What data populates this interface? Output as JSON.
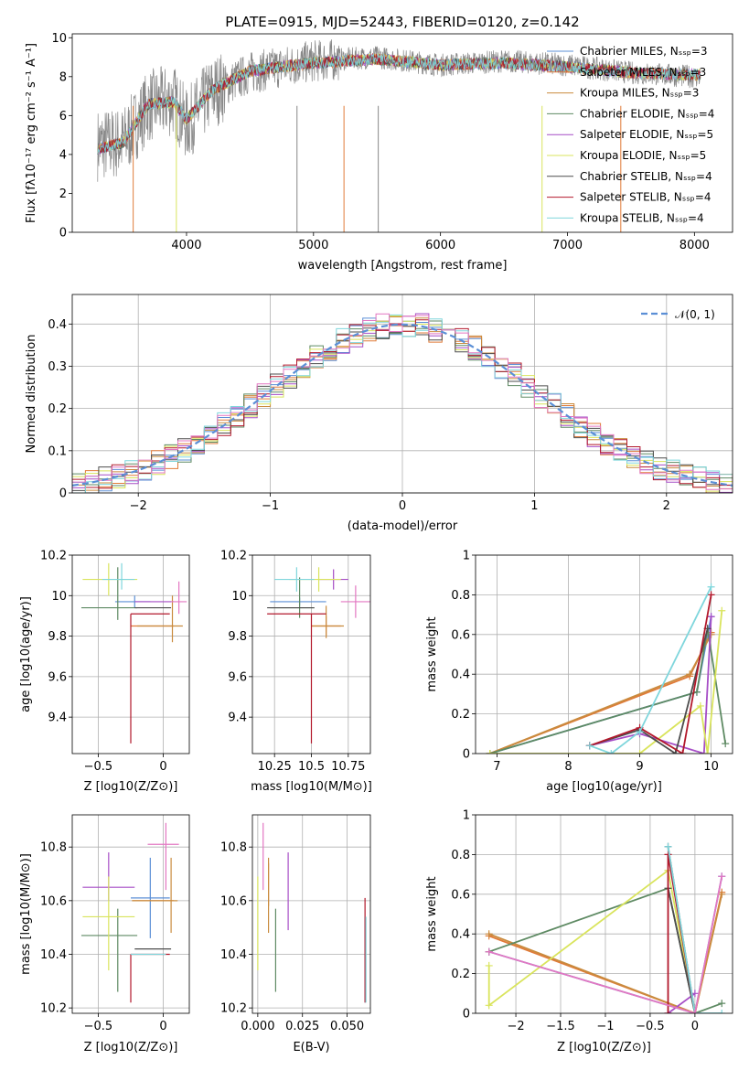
{
  "figure": {
    "title": "PLATE=0915, MJD=52443, FIBERID=0120, z=0.142"
  },
  "colors": {
    "Chabrier MILES": "#5b8fd6",
    "Salpeter MILES": "#e07b39",
    "Kroupa MILES": "#c98b3e",
    "Chabrier ELODIE": "#5e8a63",
    "Salpeter ELODIE": "#a64dc6",
    "Kroupa ELODIE": "#d9e45c",
    "Chabrier STELIB": "#4d4d4d",
    "Salpeter STELIB": "#b2182b",
    "Kroupa STELIB": "#7fd6dc",
    "pink": "#e377c2",
    "normal": "#5b8fd6"
  },
  "chart_data": [
    {
      "id": "spectrum",
      "type": "line",
      "title": "PLATE=0915, MJD=52443, FIBERID=0120, z=0.142",
      "xlabel": "wavelength [Angstrom, rest frame]",
      "ylabel": "Flux [fλ10⁻¹⁷ erg cm⁻² s⁻¹ A⁻¹]",
      "xlim": [
        3100,
        8300
      ],
      "ylim": [
        0,
        10.2
      ],
      "xticks": [
        4000,
        5000,
        6000,
        7000,
        8000
      ],
      "yticks": [
        0,
        2,
        4,
        6,
        8,
        10
      ],
      "data_x": [
        3300,
        3500,
        3700,
        3900,
        4000,
        4200,
        4500,
        5000,
        5500,
        6000,
        6500,
        7000,
        7500,
        8000,
        8050
      ],
      "data_y": [
        4.5,
        4.6,
        6.5,
        6.8,
        5.5,
        7.2,
        8.2,
        8.8,
        9.0,
        8.6,
        8.8,
        8.6,
        8.2,
        8.0,
        8.0
      ],
      "model_y": [
        4.3,
        4.6,
        6.6,
        6.7,
        5.8,
        7.3,
        8.3,
        8.7,
        8.9,
        8.6,
        8.7,
        8.5,
        8.2,
        8.1,
        8.1
      ],
      "legend": [
        "Chabrier MILES, N_SSP=3",
        "Salpeter MILES, N_SSP=3",
        "Kroupa MILES, N_SSP=3",
        "Chabrier ELODIE, N_SSP=4",
        "Salpeter ELODIE, N_SSP=5",
        "Kroupa ELODIE, N_SSP=5",
        "Chabrier STELIB, N_SSP=4",
        "Salpeter STELIB, N_SSP=4",
        "Kroupa STELIB, N_SSP=4"
      ],
      "legend_position": "upper-right",
      "grid": false
    },
    {
      "id": "residuals",
      "type": "line",
      "xlabel": "(data-model)/error",
      "ylabel": "Normed distribution",
      "xlim": [
        -2.5,
        2.5
      ],
      "ylim": [
        0,
        0.47
      ],
      "xticks": [
        -2,
        -1,
        0,
        1,
        2
      ],
      "yticks": [
        0.0,
        0.1,
        0.2,
        0.3,
        0.4
      ],
      "legend": [
        "𝒩(0, 1)"
      ],
      "legend_position": "upper-right",
      "grid": true
    },
    {
      "id": "age_vs_Z",
      "type": "scatter",
      "xlabel": "Z [log10(Z/Z⊙)]",
      "ylabel": "age  [log10(age/yr)]",
      "xlim": [
        -0.7,
        0.2
      ],
      "ylim": [
        9.22,
        10.2
      ],
      "xticks": [
        -0.5,
        0.0
      ],
      "yticks": [
        9.4,
        9.6,
        9.8,
        10.0,
        10.2
      ],
      "grid": true,
      "points": [
        {
          "model": "Chabrier MILES",
          "x": -0.22,
          "y": 9.97,
          "xerr": [
            0.15,
            0.12
          ],
          "yerr": [
            0.03,
            0.03
          ]
        },
        {
          "model": "Salpeter MILES",
          "x": -0.25,
          "y": 9.85,
          "xerr": [
            0.0,
            0.33
          ],
          "yerr": [
            0.0,
            0.0
          ]
        },
        {
          "model": "Kroupa MILES",
          "x": 0.07,
          "y": 9.85,
          "xerr": [
            0.27,
            0.08
          ],
          "yerr": [
            0.08,
            0.15
          ]
        },
        {
          "model": "Chabrier ELODIE",
          "x": -0.35,
          "y": 9.94,
          "xerr": [
            0.28,
            0.15
          ],
          "yerr": [
            0.06,
            0.2
          ]
        },
        {
          "model": "Salpeter ELODIE",
          "x": -0.22,
          "y": 9.97,
          "xerr": [
            0.0,
            0.3
          ],
          "yerr": [
            0.0,
            0.0
          ]
        },
        {
          "model": "Kroupa ELODIE",
          "x": -0.42,
          "y": 10.08,
          "xerr": [
            0.2,
            0.22
          ],
          "yerr": [
            0.08,
            0.08
          ]
        },
        {
          "model": "Chabrier STELIB",
          "x": -0.22,
          "y": 9.94,
          "xerr": [
            0.0,
            0.28
          ],
          "yerr": [
            0.0,
            0.0
          ]
        },
        {
          "model": "Salpeter STELIB",
          "x": -0.25,
          "y": 9.91,
          "xerr": [
            0.0,
            0.3
          ],
          "yerr": [
            0.64,
            0.0
          ]
        },
        {
          "model": "Kroupa STELIB",
          "x": -0.32,
          "y": 10.08,
          "xerr": [
            0.15,
            0.1
          ],
          "yerr": [
            0.05,
            0.08
          ]
        },
        {
          "model": "pink",
          "x": 0.12,
          "y": 9.97,
          "xerr": [
            0.06,
            0.06
          ],
          "yerr": [
            0.06,
            0.1
          ]
        }
      ]
    },
    {
      "id": "age_vs_mass",
      "type": "scatter",
      "xlabel": "mass [log10(M/M⊙)]",
      "xlim": [
        10.1,
        10.9
      ],
      "ylim": [
        9.22,
        10.2
      ],
      "xticks": [
        10.25,
        10.5,
        10.75
      ],
      "yticks": [
        9.4,
        9.6,
        9.8,
        10.0,
        10.2
      ],
      "grid": true,
      "points": [
        {
          "model": "Chabrier MILES",
          "x": 10.42,
          "y": 9.97,
          "xerr": [
            0.2,
            0.18
          ],
          "yerr": [
            0.02,
            0.02
          ]
        },
        {
          "model": "Salpeter MILES",
          "x": 10.6,
          "y": 9.85,
          "xerr": [
            0.1,
            0.1
          ],
          "yerr": [
            0.05,
            0.05
          ]
        },
        {
          "model": "Kroupa MILES",
          "x": 10.6,
          "y": 9.85,
          "xerr": [
            0.1,
            0.12
          ],
          "yerr": [
            0.06,
            0.1
          ]
        },
        {
          "model": "Chabrier ELODIE",
          "x": 10.42,
          "y": 9.94,
          "xerr": [
            0.2,
            0.1
          ],
          "yerr": [
            0.05,
            0.15
          ]
        },
        {
          "model": "Salpeter ELODIE",
          "x": 10.65,
          "y": 10.08,
          "xerr": [
            0.1,
            0.1
          ],
          "yerr": [
            0.05,
            0.05
          ]
        },
        {
          "model": "Kroupa ELODIE",
          "x": 10.55,
          "y": 10.08,
          "xerr": [
            0.2,
            0.15
          ],
          "yerr": [
            0.06,
            0.06
          ]
        },
        {
          "model": "Chabrier STELIB",
          "x": 10.42,
          "y": 9.94,
          "xerr": [
            0.22,
            0.1
          ],
          "yerr": [
            0.0,
            0.0
          ]
        },
        {
          "model": "Salpeter STELIB",
          "x": 10.5,
          "y": 9.91,
          "xerr": [
            0.3,
            0.1
          ],
          "yerr": [
            0.64,
            0.0
          ]
        },
        {
          "model": "Kroupa STELIB",
          "x": 10.4,
          "y": 10.08,
          "xerr": [
            0.15,
            0.12
          ],
          "yerr": [
            0.06,
            0.06
          ]
        },
        {
          "model": "pink",
          "x": 10.8,
          "y": 9.97,
          "xerr": [
            0.1,
            0.1
          ],
          "yerr": [
            0.08,
            0.08
          ]
        }
      ]
    },
    {
      "id": "weight_vs_age",
      "type": "line",
      "xlabel": "age  [log10(age/yr)]",
      "ylabel": "mass weight",
      "xlim": [
        6.7,
        10.3
      ],
      "ylim": [
        0,
        1.0
      ],
      "xticks": [
        7,
        8,
        9,
        10
      ],
      "yticks": [
        0.0,
        0.2,
        0.4,
        0.6,
        0.8,
        1.0
      ],
      "grid": true,
      "series": [
        {
          "model": "Chabrier MILES",
          "x": [
            6.9,
            9.8,
            10.0
          ],
          "y": [
            0.0,
            0.31,
            0.69
          ]
        },
        {
          "model": "Salpeter MILES",
          "x": [
            6.9,
            9.7,
            10.0
          ],
          "y": [
            0.0,
            0.39,
            0.61
          ]
        },
        {
          "model": "Kroupa MILES",
          "x": [
            6.9,
            9.7,
            10.0
          ],
          "y": [
            0.0,
            0.4,
            0.6
          ]
        },
        {
          "model": "Chabrier ELODIE",
          "x": [
            6.9,
            9.8,
            9.95,
            10.2
          ],
          "y": [
            0.0,
            0.31,
            0.63,
            0.05
          ]
        },
        {
          "model": "Salpeter ELODIE",
          "x": [
            8.3,
            9.0,
            9.9,
            10.0
          ],
          "y": [
            0.04,
            0.1,
            0.0,
            0.69
          ]
        },
        {
          "model": "Kroupa ELODIE",
          "x": [
            6.9,
            9.0,
            9.85,
            9.95,
            10.15
          ],
          "y": [
            0.0,
            0.0,
            0.24,
            0.0,
            0.72
          ]
        },
        {
          "model": "Chabrier STELIB",
          "x": [
            8.3,
            9.0,
            9.5,
            9.95
          ],
          "y": [
            0.04,
            0.12,
            0.0,
            0.63
          ]
        },
        {
          "model": "Salpeter STELIB",
          "x": [
            8.3,
            9.0,
            9.6,
            10.0
          ],
          "y": [
            0.04,
            0.13,
            0.0,
            0.8
          ]
        },
        {
          "model": "Kroupa STELIB",
          "x": [
            8.3,
            8.6,
            9.0,
            10.0
          ],
          "y": [
            0.04,
            0.0,
            0.11,
            0.84
          ]
        }
      ]
    },
    {
      "id": "mass_vs_Z",
      "type": "scatter",
      "xlabel": "Z [log10(Z/Z⊙)]",
      "ylabel": "mass [log10(M/M⊙)]",
      "xlim": [
        -0.7,
        0.2
      ],
      "ylim": [
        10.18,
        10.92
      ],
      "xticks": [
        -0.5,
        0.0
      ],
      "yticks": [
        10.2,
        10.4,
        10.6,
        10.8
      ],
      "grid": true,
      "points": [
        {
          "model": "Chabrier MILES",
          "x": -0.1,
          "y": 10.61,
          "xerr": [
            0.15,
            0.15
          ],
          "yerr": [
            0.15,
            0.15
          ]
        },
        {
          "model": "Salpeter MILES",
          "x": 0.08,
          "y": 10.6,
          "xerr": [
            0.32,
            0.0
          ],
          "yerr": [
            0.0,
            0.0
          ]
        },
        {
          "model": "Kroupa MILES",
          "x": 0.06,
          "y": 10.6,
          "xerr": [
            0.3,
            0.05
          ],
          "yerr": [
            0.12,
            0.16
          ]
        },
        {
          "model": "Chabrier ELODIE",
          "x": -0.35,
          "y": 10.47,
          "xerr": [
            0.28,
            0.15
          ],
          "yerr": [
            0.21,
            0.1
          ]
        },
        {
          "model": "Salpeter ELODIE",
          "x": -0.42,
          "y": 10.65,
          "xerr": [
            0.2,
            0.2
          ],
          "yerr": [
            0.05,
            0.13
          ]
        },
        {
          "model": "Kroupa ELODIE",
          "x": -0.42,
          "y": 10.54,
          "xerr": [
            0.2,
            0.2
          ],
          "yerr": [
            0.2,
            0.15
          ]
        },
        {
          "model": "Chabrier STELIB",
          "x": -0.22,
          "y": 10.42,
          "xerr": [
            0.0,
            0.28
          ],
          "yerr": [
            0.0,
            0.0
          ]
        },
        {
          "model": "Salpeter STELIB",
          "x": -0.25,
          "y": 10.4,
          "xerr": [
            0.0,
            0.3
          ],
          "yerr": [
            0.18,
            0.0
          ]
        },
        {
          "model": "Kroupa STELIB",
          "x": -0.1,
          "y": 10.4,
          "xerr": [
            0.15,
            0.12
          ],
          "yerr": [
            0.0,
            0.0
          ]
        },
        {
          "model": "pink",
          "x": 0.02,
          "y": 10.81,
          "xerr": [
            0.14,
            0.1
          ],
          "yerr": [
            0.17,
            0.08
          ]
        }
      ]
    },
    {
      "id": "mass_vs_ebv",
      "type": "scatter",
      "xlabel": "E(B-V)",
      "xlim": [
        -0.003,
        0.063
      ],
      "ylim": [
        10.18,
        10.92
      ],
      "xticks": [
        0.0,
        0.025,
        0.05
      ],
      "xticklabels": [
        "0.000",
        "0.025",
        "0.050"
      ],
      "yticks": [
        10.2,
        10.4,
        10.6,
        10.8
      ],
      "grid": true,
      "points": [
        {
          "model": "Chabrier MILES",
          "x": 0.06,
          "y": 10.4,
          "yerr": [
            0.18,
            0.14
          ]
        },
        {
          "model": "Salpeter MILES",
          "x": 0.006,
          "y": 10.7,
          "yerr": [
            0.12,
            0.04
          ]
        },
        {
          "model": "Kroupa MILES",
          "x": 0.006,
          "y": 10.6,
          "yerr": [
            0.12,
            0.16
          ]
        },
        {
          "model": "Chabrier ELODIE",
          "x": 0.01,
          "y": 10.47,
          "yerr": [
            0.21,
            0.1
          ]
        },
        {
          "model": "Salpeter ELODIE",
          "x": 0.017,
          "y": 10.65,
          "yerr": [
            0.16,
            0.13
          ]
        },
        {
          "model": "Kroupa ELODIE",
          "x": 0.0,
          "y": 10.54,
          "yerr": [
            0.2,
            0.15
          ]
        },
        {
          "model": "Salpeter STELIB",
          "x": 0.06,
          "y": 10.4,
          "yerr": [
            0.18,
            0.21
          ]
        },
        {
          "model": "Kroupa STELIB",
          "x": 0.0605,
          "y": 10.4,
          "yerr": [
            0.18,
            0.14
          ]
        },
        {
          "model": "pink",
          "x": 0.003,
          "y": 10.81,
          "yerr": [
            0.17,
            0.08
          ]
        }
      ]
    },
    {
      "id": "weight_vs_Z",
      "type": "line",
      "xlabel": "Z [log10(Z/Z⊙)]",
      "ylabel": "mass weight",
      "xlim": [
        -2.45,
        0.42
      ],
      "ylim": [
        0,
        1.0
      ],
      "xticks": [
        -2.0,
        -1.5,
        -1.0,
        -0.5,
        0.0
      ],
      "yticks": [
        0.0,
        0.2,
        0.4,
        0.6,
        0.8,
        1.0
      ],
      "grid": true,
      "series": [
        {
          "model": "Chabrier MILES",
          "x": [
            -2.3,
            0.0,
            0.3
          ],
          "y": [
            0.31,
            0.0,
            0.69
          ]
        },
        {
          "model": "Salpeter MILES",
          "x": [
            -2.3,
            0.0,
            0.3
          ],
          "y": [
            0.39,
            0.0,
            0.61
          ]
        },
        {
          "model": "Kroupa MILES",
          "x": [
            -2.3,
            0.0,
            0.3
          ],
          "y": [
            0.4,
            0.0,
            0.6
          ]
        },
        {
          "model": "Chabrier ELODIE",
          "x": [
            -2.3,
            -0.3,
            0.0,
            0.3
          ],
          "y": [
            0.31,
            0.63,
            0.0,
            0.05
          ]
        },
        {
          "model": "Salpeter ELODIE",
          "x": [
            -0.3,
            0.0
          ],
          "y": [
            0.0,
            0.1
          ]
        },
        {
          "model": "Kroupa ELODIE",
          "x": [
            -2.3,
            -2.3,
            -0.3,
            0.0
          ],
          "y": [
            0.24,
            0.04,
            0.72,
            0.0
          ]
        },
        {
          "model": "Chabrier STELIB",
          "x": [
            -0.3,
            0.0,
            -0.3
          ],
          "y": [
            0.84,
            0.0,
            0.63
          ]
        },
        {
          "model": "Salpeter STELIB",
          "x": [
            -0.3,
            -0.3,
            0.0
          ],
          "y": [
            0.0,
            0.8,
            0.0
          ]
        },
        {
          "model": "Kroupa STELIB",
          "x": [
            -0.3,
            0.0,
            0.3
          ],
          "y": [
            0.84,
            0.0,
            0.0
          ]
        },
        {
          "model": "pink",
          "x": [
            -2.3,
            0.0,
            0.3
          ],
          "y": [
            0.31,
            0.0,
            0.69
          ]
        }
      ]
    }
  ]
}
